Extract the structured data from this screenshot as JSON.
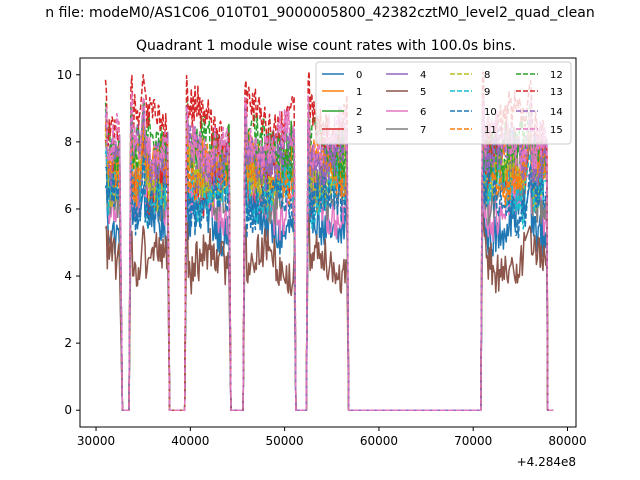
{
  "figure": {
    "suptitle": "n file: modeM0/AS1C06_010T01_9000005800_42382cztM0_level2_quad_clean",
    "title": "Quadrant 1 module wise count rates with 100.0s bins.",
    "x_offset_label": "+4.284e8"
  },
  "chart_data": {
    "type": "line",
    "title": "Quadrant 1 module wise count rates with 100.0s bins.",
    "xlabel": "",
    "ylabel": "",
    "x_offset": 428400000,
    "xlim": [
      28300,
      80900
    ],
    "ylim": [
      -0.5,
      10.5
    ],
    "xticks": [
      30000,
      40000,
      50000,
      60000,
      70000,
      80000
    ],
    "xtick_labels": [
      "30000",
      "40000",
      "50000",
      "60000",
      "70000",
      "80000"
    ],
    "yticks": [
      0,
      2,
      4,
      6,
      8,
      10
    ],
    "ytick_labels": [
      "0",
      "2",
      "4",
      "6",
      "8",
      "10"
    ],
    "grid": false,
    "legend_position": "top-right",
    "legend_columns": 4,
    "segments": [
      [
        31000,
        32500
      ],
      [
        33700,
        34700
      ],
      [
        35000,
        37600
      ],
      [
        39600,
        44100
      ],
      [
        45800,
        51000
      ],
      [
        52500,
        56600
      ],
      [
        71000,
        75500
      ],
      [
        76000,
        77800
      ]
    ],
    "gaps_zero": [
      [
        32800,
        33500
      ],
      [
        37800,
        39400
      ],
      [
        44300,
        45600
      ],
      [
        51200,
        52300
      ],
      [
        56800,
        70800
      ],
      [
        77900,
        78500
      ]
    ],
    "series": [
      {
        "name": "0",
        "color": "#1f77b4",
        "style": "solid",
        "approx_level": 5.6
      },
      {
        "name": "1",
        "color": "#ff7f0e",
        "style": "solid",
        "approx_level": 7.4
      },
      {
        "name": "2",
        "color": "#2ca02c",
        "style": "solid",
        "approx_level": 7.6
      },
      {
        "name": "3",
        "color": "#d62728",
        "style": "solid",
        "approx_level": 6.8
      },
      {
        "name": "4",
        "color": "#9467bd",
        "style": "solid",
        "approx_level": 7.3
      },
      {
        "name": "5",
        "color": "#8c564b",
        "style": "solid",
        "approx_level": 4.4
      },
      {
        "name": "6",
        "color": "#e377c2",
        "style": "solid",
        "approx_level": 6.1
      },
      {
        "name": "7",
        "color": "#7f7f7f",
        "style": "solid",
        "approx_level": 6.6
      },
      {
        "name": "8",
        "color": "#bcbd22",
        "style": "dashed",
        "approx_level": 7.0
      },
      {
        "name": "9",
        "color": "#17becf",
        "style": "dashed",
        "approx_level": 6.5
      },
      {
        "name": "10",
        "color": "#1f77b4",
        "style": "dashed",
        "approx_level": 6.2
      },
      {
        "name": "11",
        "color": "#ff7f0e",
        "style": "dashed",
        "approx_level": 7.1
      },
      {
        "name": "12",
        "color": "#2ca02c",
        "style": "dashed",
        "approx_level": 7.8
      },
      {
        "name": "13",
        "color": "#d62728",
        "style": "dashed",
        "approx_level": 8.6
      },
      {
        "name": "14",
        "color": "#9467bd",
        "style": "dashed",
        "approx_level": 7.6
      },
      {
        "name": "15",
        "color": "#e377c2",
        "style": "dashed",
        "approx_level": 8.0
      }
    ]
  }
}
